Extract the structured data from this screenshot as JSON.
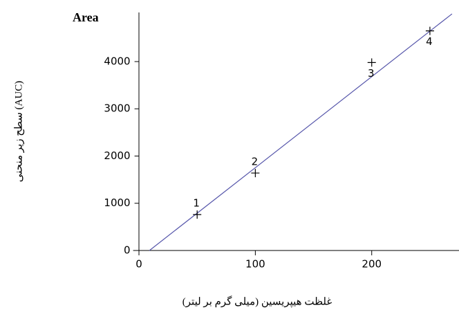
{
  "chart_data": {
    "type": "scatter",
    "y_axis_title": "Area",
    "y_label": "سطح زیر منحنی (AUC)",
    "x_label": "غلظت هیپریسین (میلی گرم بر لیتر)",
    "x": [
      50,
      100,
      200,
      250
    ],
    "values": [
      760,
      1640,
      3980,
      4650
    ],
    "point_labels": [
      "1",
      "2",
      "3",
      "4"
    ],
    "label_position": [
      "above",
      "above",
      "below",
      "below"
    ],
    "color": "#000000",
    "fit_line": {
      "x": [
        9,
        269
      ],
      "values": [
        0,
        5010
      ],
      "color": "#5555aa"
    },
    "xlim": [
      -5,
      275
    ],
    "ylim": [
      0,
      5040
    ],
    "xticks": [
      0,
      100,
      200
    ],
    "yticks": [
      0,
      1000,
      2000,
      3000,
      4000
    ]
  }
}
